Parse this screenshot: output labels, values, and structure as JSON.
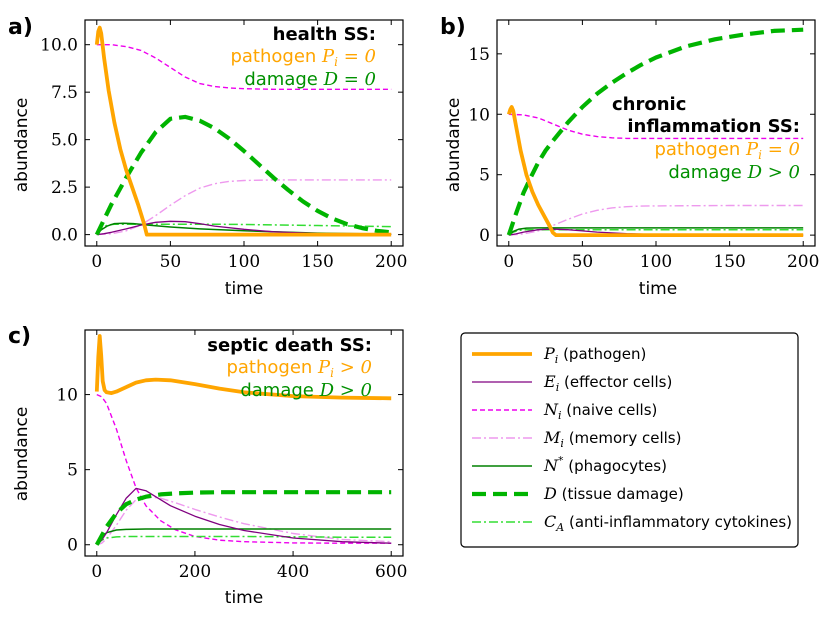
{
  "colors": {
    "pathogen": "#FFA500",
    "effector": "#800080",
    "naive": "#EE00EE",
    "memory": "#EE99EE",
    "phagocytes": "#008000",
    "damage": "#00B400",
    "cytokines": "#33DD33"
  },
  "legend": [
    {
      "sym": "P",
      "sub": "i",
      "sup": "",
      "text": " (pathogen)",
      "series": "pathogen"
    },
    {
      "sym": "E",
      "sub": "i",
      "sup": "",
      "text": " (effector cells)",
      "series": "effector"
    },
    {
      "sym": "N",
      "sub": "i",
      "sup": "",
      "text": " (naive cells)",
      "series": "naive"
    },
    {
      "sym": "M",
      "sub": "i",
      "sup": "",
      "text": " (memory cells)",
      "series": "memory"
    },
    {
      "sym": "N",
      "sub": "",
      "sup": "*",
      "text": " (phagocytes)",
      "series": "phagocytes"
    },
    {
      "sym": "D",
      "sub": "",
      "sup": "",
      "text": " (tissue damage)",
      "series": "damage"
    },
    {
      "sym": "C",
      "sub": "A",
      "sup": "",
      "text": " (anti-inflammatory cytokines)",
      "series": "cytokines"
    }
  ],
  "chart_data": [
    {
      "id": "a",
      "type": "line",
      "label": "a)",
      "annotation": {
        "title": [
          "health SS:"
        ],
        "pathogen_text": "pathogen ",
        "pathogen_math": "P",
        "pathogen_sub": "i",
        "pathogen_rel": " = 0",
        "damage_text": "damage ",
        "damage_math": "D",
        "damage_rel": " = 0"
      },
      "xlabel": "time",
      "ylabel": "abundance",
      "xlim": [
        -8,
        208
      ],
      "ylim": [
        -0.6,
        11.3
      ],
      "xticks": [
        0,
        50,
        100,
        150,
        200
      ],
      "yticks": [
        0.0,
        2.5,
        5.0,
        7.5,
        10.0
      ],
      "ytick_labels": [
        "0.0",
        "2.5",
        "5.0",
        "7.5",
        "10.0"
      ],
      "series": {
        "pathogen": {
          "x": [
            0,
            1,
            2,
            3,
            5,
            8,
            12,
            16,
            20,
            24,
            28,
            32,
            34,
            40,
            60,
            100,
            150,
            200
          ],
          "y": [
            10.0,
            10.7,
            10.9,
            10.6,
            9.3,
            7.6,
            5.9,
            4.5,
            3.4,
            2.5,
            1.6,
            0.6,
            0.0,
            0.0,
            0.0,
            0.0,
            0.0,
            0.0
          ]
        },
        "effector": {
          "x": [
            0,
            5,
            10,
            20,
            30,
            40,
            50,
            60,
            70,
            80,
            100,
            120,
            150,
            200
          ],
          "y": [
            0.0,
            0.05,
            0.12,
            0.3,
            0.5,
            0.65,
            0.7,
            0.68,
            0.58,
            0.45,
            0.28,
            0.15,
            0.06,
            0.01
          ]
        },
        "naive": {
          "x": [
            0,
            10,
            20,
            30,
            40,
            50,
            60,
            70,
            80,
            90,
            100,
            120,
            150,
            200
          ],
          "y": [
            10.0,
            10.0,
            9.9,
            9.7,
            9.3,
            8.8,
            8.3,
            7.95,
            7.8,
            7.72,
            7.68,
            7.65,
            7.65,
            7.65
          ]
        },
        "memory": {
          "x": [
            0,
            10,
            20,
            30,
            40,
            50,
            60,
            70,
            80,
            90,
            100,
            120,
            150,
            200
          ],
          "y": [
            0.0,
            0.05,
            0.2,
            0.5,
            1.0,
            1.55,
            2.05,
            2.45,
            2.68,
            2.8,
            2.85,
            2.88,
            2.88,
            2.88
          ]
        },
        "phagocytes": {
          "x": [
            0,
            3,
            7,
            12,
            18,
            25,
            35,
            50,
            70,
            100,
            150,
            200
          ],
          "y": [
            0.0,
            0.25,
            0.45,
            0.58,
            0.6,
            0.58,
            0.5,
            0.4,
            0.3,
            0.2,
            0.08,
            0.02
          ]
        },
        "damage": {
          "x": [
            0,
            5,
            10,
            15,
            20,
            30,
            40,
            50,
            60,
            70,
            80,
            90,
            100,
            110,
            120,
            130,
            140,
            150,
            160,
            170,
            180,
            190,
            200
          ],
          "y": [
            0.0,
            0.8,
            1.6,
            2.3,
            3.0,
            4.3,
            5.4,
            6.1,
            6.2,
            6.0,
            5.6,
            5.05,
            4.4,
            3.7,
            3.0,
            2.35,
            1.75,
            1.25,
            0.85,
            0.55,
            0.35,
            0.2,
            0.12
          ]
        },
        "cytokines": {
          "x": [
            0,
            3,
            7,
            12,
            20,
            30,
            50,
            80,
            100,
            150,
            200
          ],
          "y": [
            0.0,
            0.3,
            0.5,
            0.55,
            0.55,
            0.55,
            0.55,
            0.55,
            0.53,
            0.48,
            0.42
          ]
        }
      }
    },
    {
      "id": "b",
      "type": "line",
      "label": "b)",
      "annotation": {
        "title": [
          "chronic",
          "inflammation SS:"
        ],
        "pathogen_text": "pathogen ",
        "pathogen_math": "P",
        "pathogen_sub": "i",
        "pathogen_rel": " = 0",
        "damage_text": "damage ",
        "damage_math": "D",
        "damage_rel": " > 0"
      },
      "xlabel": "time",
      "ylabel": "abundance",
      "xlim": [
        -8,
        208
      ],
      "ylim": [
        -0.9,
        17.8
      ],
      "xticks": [
        0,
        50,
        100,
        150,
        200
      ],
      "yticks": [
        0,
        5,
        10,
        15
      ],
      "ytick_labels": [
        "0",
        "5",
        "10",
        "15"
      ],
      "series": {
        "pathogen": {
          "x": [
            0,
            1,
            2,
            3,
            5,
            8,
            12,
            16,
            20,
            24,
            28,
            30,
            32,
            40,
            60,
            100,
            150,
            200
          ],
          "y": [
            10.0,
            10.4,
            10.6,
            10.3,
            9.0,
            7.0,
            5.0,
            3.6,
            2.5,
            1.6,
            0.7,
            0.2,
            0.0,
            0.0,
            0.0,
            0.0,
            0.0,
            0.0
          ]
        },
        "effector": {
          "x": [
            0,
            5,
            10,
            20,
            30,
            40,
            50,
            60,
            80,
            100,
            150,
            200
          ],
          "y": [
            0.0,
            0.1,
            0.25,
            0.45,
            0.5,
            0.45,
            0.35,
            0.25,
            0.12,
            0.05,
            0.0,
            0.0
          ]
        },
        "naive": {
          "x": [
            0,
            10,
            20,
            30,
            40,
            50,
            60,
            70,
            80,
            100,
            150,
            200
          ],
          "y": [
            10.0,
            9.95,
            9.7,
            9.2,
            8.7,
            8.35,
            8.15,
            8.05,
            8.0,
            8.0,
            8.0,
            8.0
          ]
        },
        "memory": {
          "x": [
            0,
            10,
            20,
            30,
            40,
            50,
            60,
            70,
            80,
            90,
            100,
            150,
            200
          ],
          "y": [
            0.0,
            0.1,
            0.35,
            0.8,
            1.3,
            1.75,
            2.05,
            2.25,
            2.35,
            2.4,
            2.42,
            2.45,
            2.45
          ]
        },
        "phagocytes": {
          "x": [
            0,
            3,
            7,
            12,
            20,
            30,
            50,
            100,
            150,
            200
          ],
          "y": [
            0.0,
            0.3,
            0.5,
            0.58,
            0.6,
            0.6,
            0.6,
            0.6,
            0.6,
            0.6
          ]
        },
        "damage": {
          "x": [
            0,
            5,
            10,
            15,
            20,
            25,
            30,
            40,
            50,
            60,
            70,
            80,
            90,
            100,
            120,
            140,
            160,
            180,
            200
          ],
          "y": [
            0.0,
            1.8,
            3.5,
            4.8,
            6.0,
            7.0,
            7.8,
            9.3,
            10.6,
            11.7,
            12.6,
            13.4,
            14.1,
            14.7,
            15.6,
            16.2,
            16.6,
            16.9,
            17.0
          ]
        },
        "cytokines": {
          "x": [
            0,
            3,
            7,
            12,
            20,
            30,
            50,
            100,
            150,
            200
          ],
          "y": [
            0.0,
            0.25,
            0.4,
            0.45,
            0.45,
            0.45,
            0.45,
            0.45,
            0.45,
            0.45
          ]
        }
      }
    },
    {
      "id": "c",
      "type": "line",
      "label": "c)",
      "annotation": {
        "title": [
          "septic death SS:"
        ],
        "pathogen_text": "pathogen ",
        "pathogen_math": "P",
        "pathogen_sub": "i",
        "pathogen_rel": " > 0",
        "damage_text": "damage ",
        "damage_math": "D",
        "damage_rel": " > 0"
      },
      "xlabel": "time",
      "ylabel": "abundance",
      "xlim": [
        -24,
        624
      ],
      "ylim": [
        -0.75,
        14.3
      ],
      "xticks": [
        0,
        200,
        400,
        600
      ],
      "yticks": [
        0,
        5,
        10
      ],
      "ytick_labels": [
        "0",
        "5",
        "10"
      ],
      "series": {
        "pathogen": {
          "x": [
            0,
            3,
            6,
            9,
            12,
            16,
            20,
            30,
            40,
            60,
            80,
            100,
            120,
            150,
            200,
            250,
            300,
            400,
            500,
            600
          ],
          "y": [
            10.2,
            12.5,
            13.9,
            12.6,
            10.9,
            10.3,
            10.15,
            10.1,
            10.2,
            10.5,
            10.8,
            10.95,
            11.0,
            10.95,
            10.7,
            10.4,
            10.15,
            9.9,
            9.8,
            9.75
          ]
        },
        "effector": {
          "x": [
            0,
            10,
            20,
            40,
            60,
            80,
            100,
            120,
            150,
            200,
            250,
            300,
            400,
            500,
            600
          ],
          "y": [
            0.0,
            0.3,
            0.8,
            2.0,
            3.1,
            3.75,
            3.6,
            3.2,
            2.6,
            1.9,
            1.35,
            0.95,
            0.45,
            0.2,
            0.1
          ]
        },
        "naive": {
          "x": [
            0,
            10,
            20,
            40,
            60,
            80,
            100,
            130,
            160,
            200,
            250,
            300,
            400,
            500,
            600
          ],
          "y": [
            10.0,
            9.85,
            9.4,
            7.7,
            5.6,
            3.8,
            2.6,
            1.6,
            1.0,
            0.55,
            0.3,
            0.2,
            0.12,
            0.1,
            0.1
          ]
        },
        "memory": {
          "x": [
            0,
            10,
            20,
            40,
            60,
            80,
            100,
            130,
            160,
            200,
            250,
            300,
            400,
            500,
            600
          ],
          "y": [
            0.0,
            0.1,
            0.4,
            1.3,
            2.3,
            3.0,
            3.2,
            3.1,
            2.8,
            2.35,
            1.85,
            1.4,
            0.75,
            0.35,
            0.2
          ]
        },
        "phagocytes": {
          "x": [
            0,
            10,
            20,
            40,
            60,
            100,
            200,
            300,
            400,
            500,
            600
          ],
          "y": [
            0.0,
            0.5,
            0.8,
            0.98,
            1.02,
            1.05,
            1.05,
            1.05,
            1.05,
            1.05,
            1.05
          ]
        },
        "damage": {
          "x": [
            0,
            10,
            20,
            40,
            60,
            80,
            100,
            130,
            160,
            200,
            250,
            300,
            400,
            500,
            600
          ],
          "y": [
            0.0,
            0.6,
            1.2,
            2.1,
            2.7,
            3.0,
            3.2,
            3.35,
            3.42,
            3.47,
            3.5,
            3.5,
            3.5,
            3.5,
            3.5
          ]
        },
        "cytokines": {
          "x": [
            0,
            10,
            20,
            40,
            60,
            100,
            200,
            300,
            400,
            500,
            600
          ],
          "y": [
            0.0,
            0.3,
            0.45,
            0.52,
            0.55,
            0.55,
            0.55,
            0.55,
            0.53,
            0.5,
            0.5
          ]
        }
      }
    }
  ]
}
